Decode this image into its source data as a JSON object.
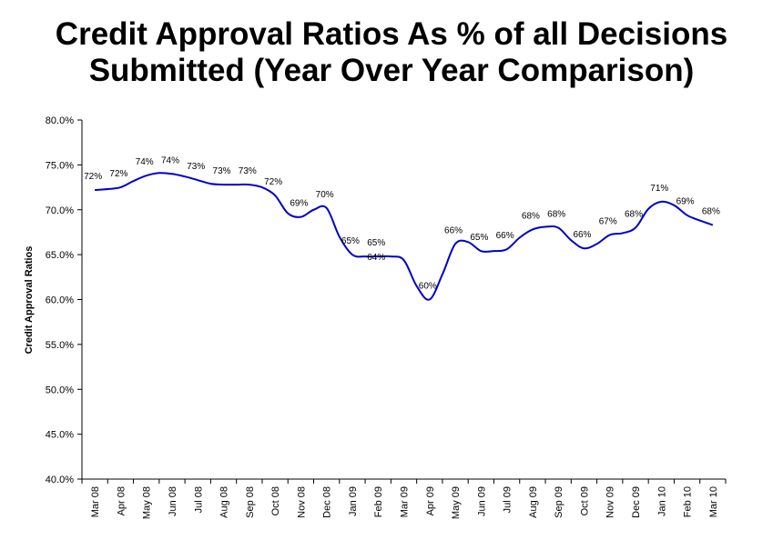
{
  "chart_data": {
    "type": "line",
    "title": "Credit Approval Ratios As % of all Decisions Submitted  (Year Over Year Comparison)",
    "title_lines": [
      "Credit Approval Ratios As % of all Decisions",
      "Submitted  (Year Over Year Comparison)"
    ],
    "xlabel": "",
    "ylabel": "Credit Approval Ratios",
    "ylim": [
      40,
      80
    ],
    "yticks": [
      "40.0%",
      "45.0%",
      "50.0%",
      "55.0%",
      "60.0%",
      "65.0%",
      "70.0%",
      "75.0%",
      "80.0%"
    ],
    "yticks_values": [
      40,
      45,
      50,
      55,
      60,
      65,
      70,
      75,
      80
    ],
    "categories": [
      "Mar 08",
      "Apr 08",
      "May 08",
      "Jun 08",
      "Jul 08",
      "Aug 08",
      "Sep 08",
      "Oct 08",
      "Nov 08",
      "Dec 08",
      "Jan 09",
      "Feb 09",
      "Mar 09",
      "Apr 09",
      "May 09",
      "Jun 09",
      "Jul 09",
      "Aug 09",
      "Sep 09",
      "Oct 09",
      "Nov 09",
      "Dec 09",
      "Jan 10",
      "Feb 10",
      "Mar 10"
    ],
    "grid": false,
    "legend": "none",
    "line_color": "#0000CC",
    "series": [
      {
        "points": [
          {
            "x": "Mar 08",
            "y": 72.2
          },
          {
            "x": "",
            "y": 72.3
          },
          {
            "x": "Apr 08",
            "y": 72.5
          },
          {
            "x": "",
            "y": 73.2
          },
          {
            "x": "May 08",
            "y": 73.8
          },
          {
            "x": "",
            "y": 74.1
          },
          {
            "x": "Jun 08",
            "y": 74.0
          },
          {
            "x": "",
            "y": 73.7
          },
          {
            "x": "Jul 08",
            "y": 73.3
          },
          {
            "x": "",
            "y": 72.9
          },
          {
            "x": "Aug 08",
            "y": 72.8
          },
          {
            "x": "",
            "y": 72.8
          },
          {
            "x": "Sep 08",
            "y": 72.8
          },
          {
            "x": "",
            "y": 72.5
          },
          {
            "x": "Oct 08",
            "y": 71.6
          },
          {
            "x": "",
            "y": 69.6
          },
          {
            "x": "Nov 08",
            "y": 69.2
          },
          {
            "x": "",
            "y": 70.0
          },
          {
            "x": "Dec 08",
            "y": 70.2
          },
          {
            "x": "",
            "y": 67.0
          },
          {
            "x": "Jan 09",
            "y": 65.0
          },
          {
            "x": "",
            "y": 64.8
          },
          {
            "x": "Feb 09",
            "y": 64.8
          },
          {
            "x": "",
            "y": 64.8
          },
          {
            "x": "Mar 09",
            "y": 64.4
          },
          {
            "x": "",
            "y": 61.5
          },
          {
            "x": "Apr 09",
            "y": 60.0
          },
          {
            "x": "",
            "y": 62.8
          },
          {
            "x": "May 09",
            "y": 66.2
          },
          {
            "x": "",
            "y": 66.4
          },
          {
            "x": "Jun 09",
            "y": 65.4
          },
          {
            "x": "",
            "y": 65.4
          },
          {
            "x": "Jul 09",
            "y": 65.6
          },
          {
            "x": "",
            "y": 66.9
          },
          {
            "x": "Aug 09",
            "y": 67.8
          },
          {
            "x": "",
            "y": 68.1
          },
          {
            "x": "Sep 09",
            "y": 68.0
          },
          {
            "x": "",
            "y": 66.6
          },
          {
            "x": "Oct 09",
            "y": 65.7
          },
          {
            "x": "",
            "y": 66.2
          },
          {
            "x": "Nov 09",
            "y": 67.2
          },
          {
            "x": "",
            "y": 67.4
          },
          {
            "x": "Dec 09",
            "y": 68.0
          },
          {
            "x": "",
            "y": 70.1
          },
          {
            "x": "Jan 10",
            "y": 70.9
          },
          {
            "x": "",
            "y": 70.5
          },
          {
            "x": "Feb 10",
            "y": 69.4
          },
          {
            "x": "",
            "y": 68.8
          },
          {
            "x": "Mar 10",
            "y": 68.3
          }
        ]
      }
    ],
    "data_labels": [
      {
        "x": "Mar 08",
        "text": "72%",
        "y": 72
      },
      {
        "x": "Apr 08",
        "text": "72%",
        "y": 72
      },
      {
        "x": "May 08",
        "text": "74%",
        "y": 74
      },
      {
        "x": "Jun 08",
        "text": "74%",
        "y": 74
      },
      {
        "x": "Jul 08",
        "text": "73%",
        "y": 73
      },
      {
        "x": "Aug 08",
        "text": "73%",
        "y": 73
      },
      {
        "x": "Sep 08",
        "text": "73%",
        "y": 73
      },
      {
        "x": "Oct 08",
        "text": "72%",
        "y": 72
      },
      {
        "x": "Nov 08",
        "text": "69%",
        "y": 69
      },
      {
        "x": "Dec 08",
        "text": "70%",
        "y": 70
      },
      {
        "x": "Jan 09",
        "text": "65%",
        "y": 65
      },
      {
        "x": "Feb 09",
        "text": "65%",
        "y": 65
      },
      {
        "x": "Feb 09",
        "text": "64%",
        "y": 64
      },
      {
        "x": "Apr 09",
        "text": "60%",
        "y": 60
      },
      {
        "x": "May 09",
        "text": "66%",
        "y": 66
      },
      {
        "x": "Jun 09",
        "text": "65%",
        "y": 65
      },
      {
        "x": "Jul 09",
        "text": "66%",
        "y": 66
      },
      {
        "x": "Aug 09",
        "text": "68%",
        "y": 68
      },
      {
        "x": "Sep 09",
        "text": "68%",
        "y": 68
      },
      {
        "x": "Oct 09",
        "text": "66%",
        "y": 66
      },
      {
        "x": "Nov 09",
        "text": "67%",
        "y": 67
      },
      {
        "x": "Dec 09",
        "text": "68%",
        "y": 68
      },
      {
        "x": "Jan 10",
        "text": "71%",
        "y": 71
      },
      {
        "x": "Feb 10",
        "text": "69%",
        "y": 69
      },
      {
        "x": "Mar 10",
        "text": "68%",
        "y": 68
      }
    ]
  }
}
